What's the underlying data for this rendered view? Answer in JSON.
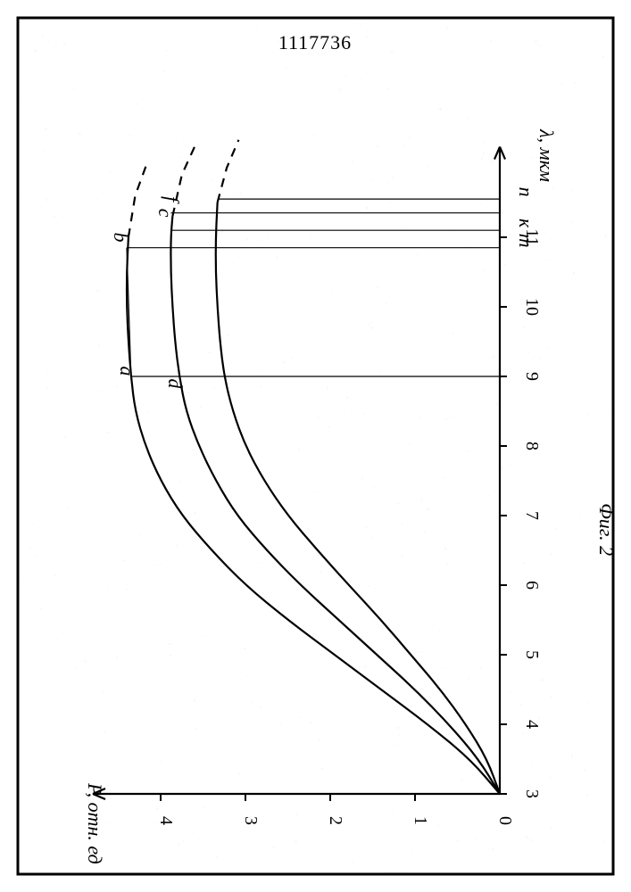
{
  "document_number": "1117736",
  "figure_label": "Фиг. 2",
  "chart": {
    "type": "line",
    "background_color": "#ffffff",
    "stroke_color": "#000000",
    "rotation_deg": 90,
    "x_axis": {
      "label": "λ, мкм",
      "min": 3,
      "max": 12,
      "ticks": [
        3,
        4,
        5,
        6,
        7,
        8,
        9,
        10,
        11
      ]
    },
    "y_axis": {
      "label": "P, отн. ед",
      "min": 0,
      "max": 4.8,
      "ticks": [
        0,
        1,
        2,
        3,
        4
      ]
    },
    "curves": {
      "top": {
        "pts": [
          [
            3,
            0
          ],
          [
            3.5,
            0.35
          ],
          [
            4,
            0.85
          ],
          [
            4.5,
            1.4
          ],
          [
            5,
            1.95
          ],
          [
            5.5,
            2.5
          ],
          [
            6,
            3.0
          ],
          [
            6.5,
            3.4
          ],
          [
            7,
            3.75
          ],
          [
            7.5,
            4.0
          ],
          [
            8,
            4.18
          ],
          [
            8.5,
            4.3
          ],
          [
            9,
            4.35
          ],
          [
            9.5,
            4.38
          ],
          [
            10,
            4.4
          ],
          [
            10.5,
            4.4
          ],
          [
            11,
            4.38
          ]
        ],
        "dashed_tail": [
          [
            11,
            4.38
          ],
          [
            11.6,
            4.3
          ],
          [
            12.1,
            4.15
          ]
        ]
      },
      "middle": {
        "pts": [
          [
            3,
            0
          ],
          [
            3.5,
            0.25
          ],
          [
            4,
            0.6
          ],
          [
            4.5,
            1.0
          ],
          [
            5,
            1.45
          ],
          [
            5.5,
            1.9
          ],
          [
            6,
            2.35
          ],
          [
            6.5,
            2.75
          ],
          [
            7,
            3.1
          ],
          [
            7.5,
            3.35
          ],
          [
            8,
            3.55
          ],
          [
            8.5,
            3.7
          ],
          [
            9,
            3.78
          ],
          [
            9.5,
            3.83
          ],
          [
            10,
            3.86
          ],
          [
            10.5,
            3.88
          ],
          [
            11,
            3.88
          ],
          [
            11.3,
            3.86
          ]
        ],
        "dashed_tail": [
          [
            11.3,
            3.86
          ],
          [
            11.9,
            3.75
          ],
          [
            12.3,
            3.6
          ]
        ]
      },
      "bottom": {
        "pts": [
          [
            3,
            0
          ],
          [
            3.5,
            0.15
          ],
          [
            4,
            0.4
          ],
          [
            4.5,
            0.7
          ],
          [
            5,
            1.05
          ],
          [
            5.5,
            1.4
          ],
          [
            6,
            1.78
          ],
          [
            6.5,
            2.15
          ],
          [
            7,
            2.5
          ],
          [
            7.5,
            2.78
          ],
          [
            8,
            3.0
          ],
          [
            8.5,
            3.15
          ],
          [
            9,
            3.25
          ],
          [
            9.5,
            3.3
          ],
          [
            10,
            3.33
          ],
          [
            10.5,
            3.35
          ],
          [
            11,
            3.35
          ],
          [
            11.5,
            3.33
          ]
        ],
        "dashed_tail": [
          [
            11.5,
            3.33
          ],
          [
            12.0,
            3.22
          ],
          [
            12.4,
            3.08
          ]
        ]
      }
    },
    "verticals": [
      {
        "x": 9.0,
        "y_top": 4.35,
        "label_low": "a",
        "label_mid_low": "d"
      },
      {
        "x": 10.85,
        "y_top": 4.4,
        "label": "m"
      },
      {
        "x": 11.1,
        "y_top": 3.88,
        "label": "к"
      },
      {
        "x": 11.35,
        "y_top": 3.88
      },
      {
        "x": 11.55,
        "y_top": 3.33,
        "label": "n"
      }
    ],
    "curve_end_labels": {
      "b": [
        11.0,
        4.55
      ],
      "c": [
        11.35,
        4.02
      ],
      "f": [
        11.55,
        3.95
      ]
    },
    "axis_stroke_width": 2.2,
    "curve_stroke_width": 2.2,
    "tick_len": 8,
    "font_size_axis": 20,
    "font_size_label": 22
  }
}
